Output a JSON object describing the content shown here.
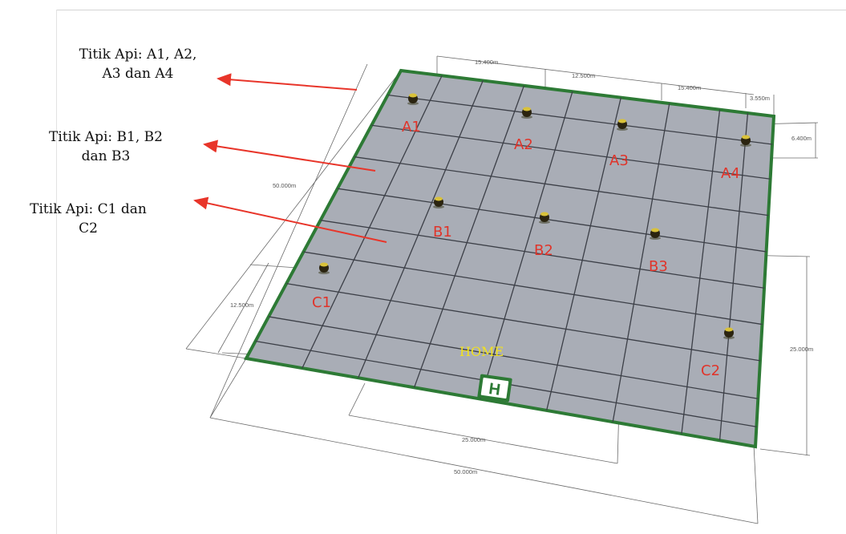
{
  "callouts": [
    {
      "id": "a",
      "line1": "Titik Api: A1, A2,",
      "line2": "A3 dan A4"
    },
    {
      "id": "b",
      "line1": "Titik Api: B1, B2",
      "line2": "dan B3"
    },
    {
      "id": "c",
      "line1": "Titik Api: C1 dan",
      "line2": "C2"
    }
  ],
  "fire_points": [
    {
      "label": "A1"
    },
    {
      "label": "A2"
    },
    {
      "label": "A3"
    },
    {
      "label": "A4"
    },
    {
      "label": "B1"
    },
    {
      "label": "B2"
    },
    {
      "label": "B3"
    },
    {
      "label": "C1"
    },
    {
      "label": "C2"
    }
  ],
  "home": {
    "label": "HOME",
    "pad_letter": "H"
  },
  "dimensions": {
    "top_1": "15.400m",
    "top_2": "12.500m",
    "top_3": "15.400m",
    "top_4": "3.550m",
    "right_top": "6.400m",
    "left_long": "50.000m",
    "left_short": "12.500m",
    "right_long": "25.000m",
    "bottom_inner": "25.000m",
    "bottom_outer": "50.000m"
  },
  "colors": {
    "field_fill": "#a9adb6",
    "field_border": "#2d7a35",
    "grid_line": "#3c3f47",
    "arrow": "#e8352a",
    "point_label": "#e0342a",
    "home_label": "#f3e21c"
  }
}
